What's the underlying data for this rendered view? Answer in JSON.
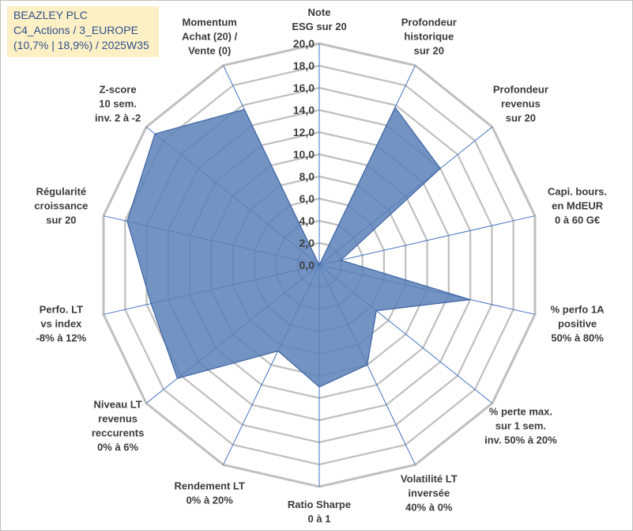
{
  "title_lines": [
    "BEAZLEY PLC",
    "C4_Actions / 3_EUROPE",
    "(10,7% | 18,9%) / 2025W35"
  ],
  "chart_data": {
    "type": "radar",
    "title": "BEAZLEY PLC",
    "rmin": 0,
    "rmax": 20,
    "grid": true,
    "ticks": [
      "0,0",
      "2,0",
      "4,0",
      "6,0",
      "8,0",
      "10,0",
      "12,0",
      "14,0",
      "16,0",
      "18,0",
      "20,0"
    ],
    "axes": [
      [
        "Note",
        "ESG sur 20"
      ],
      [
        "Profondeur",
        "historique",
        "sur 20"
      ],
      [
        "Profondeur",
        "revenus",
        "sur 20"
      ],
      [
        "Capi. bours.",
        "en MdEUR",
        "0 à 60 G€"
      ],
      [
        "% perfo 1A",
        "positive",
        "50% à 80%"
      ],
      [
        "% perte max.",
        "sur 1 sem.",
        "inv. 50% à 20%"
      ],
      [
        "Volatilité LT",
        "inversée",
        "40% à 0%"
      ],
      [
        "Ratio Sharpe",
        "0 à 1"
      ],
      [
        "Rendement LT",
        "0% à 20%"
      ],
      [
        "Niveau LT",
        "revenus",
        "reccurents",
        "0% à 6%"
      ],
      [
        "Perfo. LT",
        "vs index",
        "-8% à 12%"
      ],
      [
        "Régularité",
        "croissance",
        "sur 20"
      ],
      [
        "Z-score",
        "10 sem.",
        "inv. 2 à -2"
      ],
      [
        "Momentum",
        "Achat (20) /",
        "Vente (0)"
      ]
    ],
    "values": [
      0,
      15.8,
      14.0,
      2.0,
      14.0,
      6.6,
      10.0,
      11.0,
      8.6,
      16.4,
      15.6,
      17.8,
      19.0,
      15.6
    ],
    "colors": {
      "fill": "#5b80b8",
      "stroke": "#3d64a3",
      "grid": "#bfbfbf",
      "spoke": "#4472c4"
    }
  }
}
